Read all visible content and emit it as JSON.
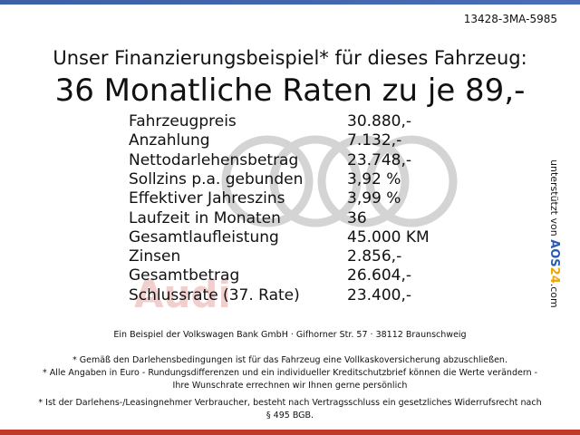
{
  "reference": "13428-3MA-5985",
  "header": {
    "subtitle": "Unser Finanzierungsbeispiel* für dieses Fahrzeug:",
    "title": "36 Monatliche Raten zu je 89,-"
  },
  "table": {
    "rows": [
      [
        "Fahrzeugpreis",
        "30.880,-"
      ],
      [
        "Anzahlung",
        "7.132,-"
      ],
      [
        "Nettodarlehensbetrag",
        "23.748,-"
      ],
      [
        "Sollzins p.a. gebunden",
        "3,92 %"
      ],
      [
        "Effektiver Jahreszins",
        "3,99 %"
      ],
      [
        "Laufzeit in Monaten",
        "36"
      ],
      [
        "Gesamtlaufleistung",
        "45.000 KM"
      ],
      [
        "Zinsen",
        "2.856,-"
      ],
      [
        "Gesamtbetrag",
        "26.604,-"
      ],
      [
        "Schlussrate (37. Rate)",
        "23.400,-"
      ]
    ]
  },
  "watermark": "Audi",
  "sponsor": {
    "prefix": "unterstützt von",
    "brand": [
      "AOS",
      "24",
      ".com"
    ]
  },
  "footer": {
    "bank": "Ein Beispiel der Volkswagen Bank GmbH · Gifhorner Str. 57 · 38112 Braunschweig",
    "notes": [
      "* Gemäß den Darlehensbedingungen ist für das Fahrzeug eine Vollkaskoversicherung abzuschließen.",
      "* Alle Angaben in Euro - Rundungsdifferenzen und ein individueller Kreditschutzbrief können die Werte verändern - Ihre Wunschrate errechnen wir Ihnen gerne persönlich",
      "* Ist der Darlehens-/Leasingnehmer Verbraucher, besteht nach Vertragsschluss ein gesetzliches Widerrufsrecht nach § 495 BGB."
    ]
  }
}
